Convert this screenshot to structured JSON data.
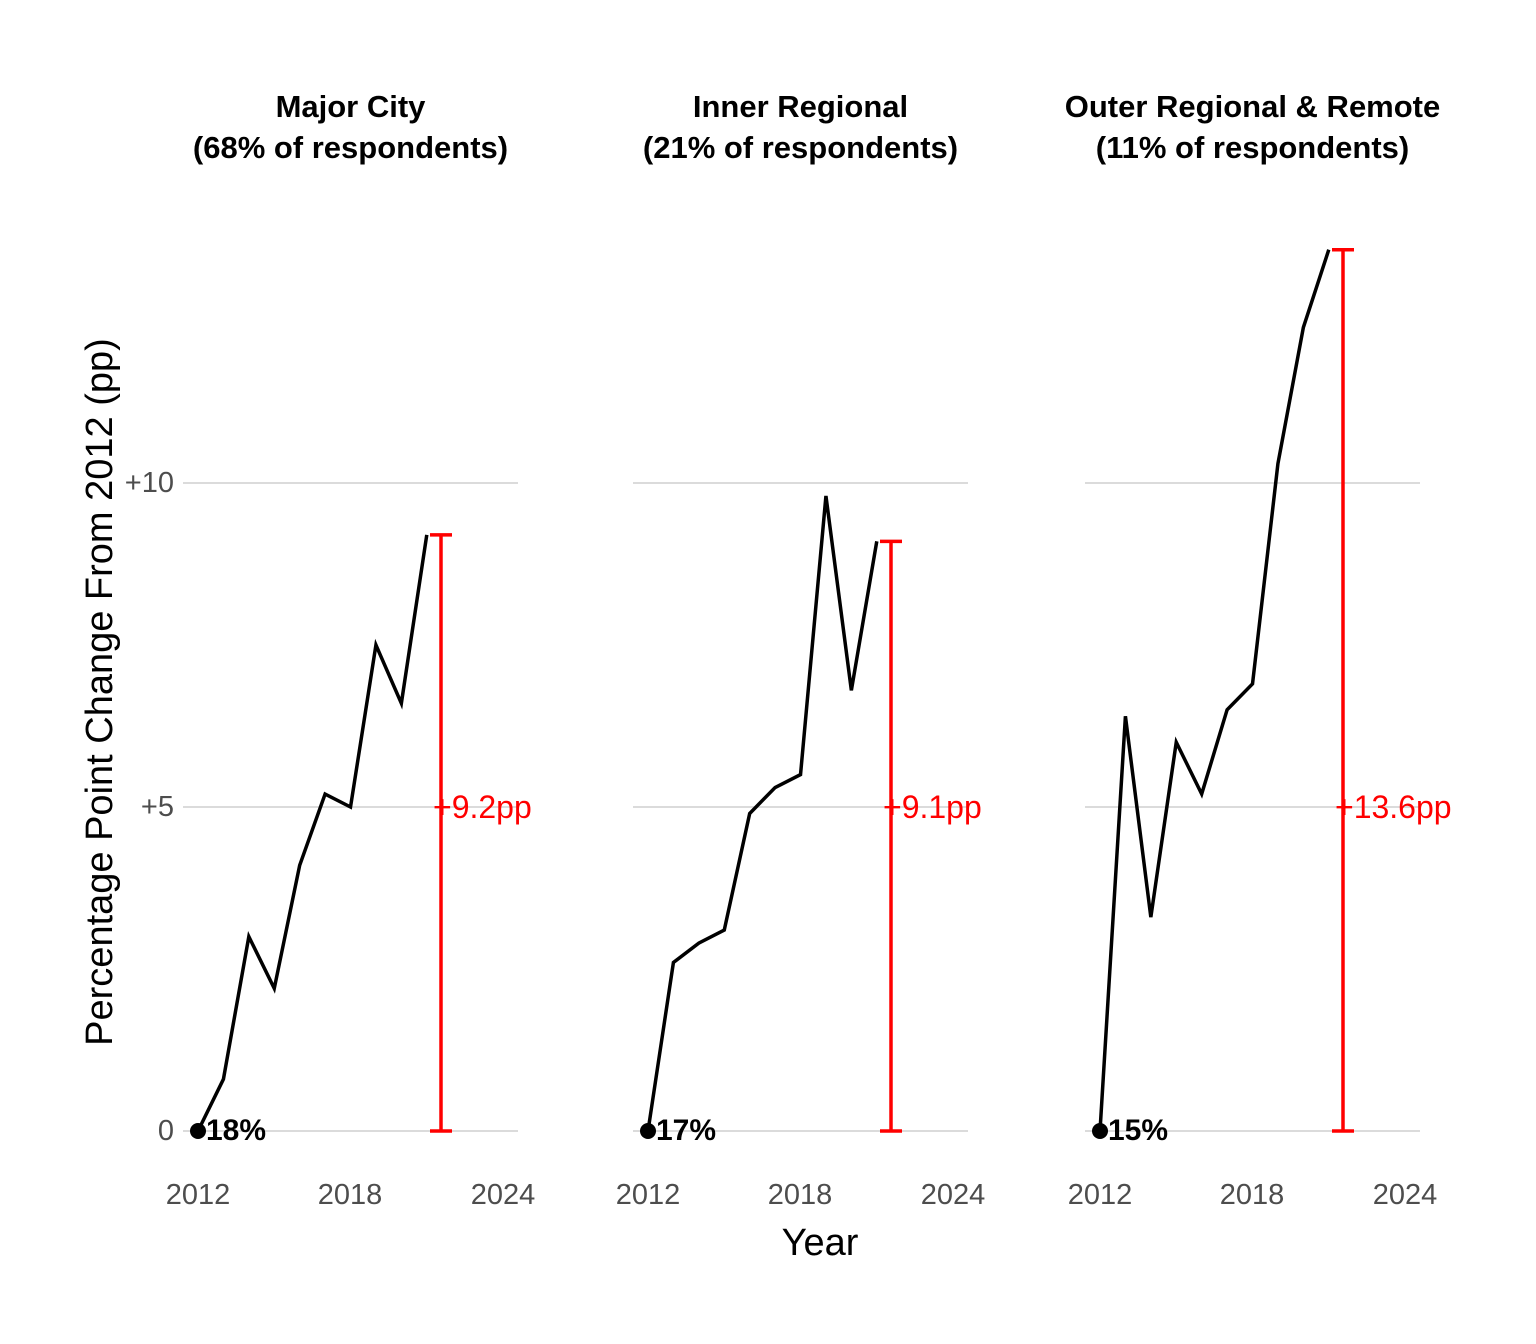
{
  "colors": {
    "line": "#000000",
    "annotation": "#ff0000",
    "gridline": "#dbdbdb",
    "tick_label": "#4d4d4d",
    "title": "#000000",
    "background": "#ffffff"
  },
  "y_axis": {
    "title": "Percentage Point Change From 2012 (pp)",
    "ticks": [
      "0",
      "+5",
      "+10"
    ],
    "tick_values": [
      0,
      5,
      10
    ]
  },
  "x_axis": {
    "title": "Year",
    "ticks": [
      "2012",
      "2018",
      "2024"
    ],
    "tick_values": [
      2012,
      2018,
      2024
    ]
  },
  "chart_data": [
    {
      "type": "line",
      "panel": "Major City",
      "title_line1": "Major City",
      "title_line2": "(68% of respondents)",
      "x": [
        2012,
        2013,
        2014,
        2015,
        2016,
        2017,
        2018,
        2019,
        2020,
        2021
      ],
      "values": [
        0,
        0.8,
        3.0,
        2.2,
        4.1,
        5.2,
        5.0,
        7.5,
        6.6,
        9.2
      ],
      "start_label": "18%",
      "change_label": "+9.2pp",
      "change_value": 9.2,
      "xlabel": "Year",
      "ylabel": "Percentage Point Change From 2012 (pp)",
      "xlim": [
        2011.4,
        2024.6
      ],
      "ylim": [
        -0.7,
        14.3
      ],
      "gridlines_y": [
        0,
        5,
        10
      ],
      "legend": "none",
      "line_color": "#000000",
      "annotation_color": "#ff0000"
    },
    {
      "type": "line",
      "panel": "Inner Regional",
      "title_line1": "Inner Regional",
      "title_line2": "(21% of respondents)",
      "x": [
        2012,
        2013,
        2014,
        2015,
        2016,
        2017,
        2018,
        2019,
        2020,
        2021
      ],
      "values": [
        0,
        2.6,
        2.9,
        3.1,
        4.9,
        5.3,
        5.5,
        9.8,
        6.8,
        9.1
      ],
      "start_label": "17%",
      "change_label": "+9.1pp",
      "change_value": 9.1,
      "xlabel": "Year",
      "ylabel": "Percentage Point Change From 2012 (pp)",
      "xlim": [
        2011.4,
        2024.6
      ],
      "ylim": [
        -0.7,
        14.3
      ],
      "gridlines_y": [
        0,
        5,
        10
      ],
      "legend": "none",
      "line_color": "#000000",
      "annotation_color": "#ff0000"
    },
    {
      "type": "line",
      "panel": "Outer Regional & Remote",
      "title_line1": "Outer Regional & Remote",
      "title_line2": "(11% of respondents)",
      "x": [
        2012,
        2013,
        2014,
        2015,
        2016,
        2017,
        2018,
        2019,
        2020,
        2021
      ],
      "values": [
        0,
        6.4,
        3.3,
        6.0,
        5.2,
        6.5,
        6.9,
        10.3,
        12.4,
        13.6
      ],
      "start_label": "15%",
      "change_label": "+13.6pp",
      "change_value": 13.6,
      "xlabel": "Year",
      "ylabel": "Percentage Point Change From 2012 (pp)",
      "xlim": [
        2011.4,
        2024.6
      ],
      "ylim": [
        -0.7,
        14.3
      ],
      "gridlines_y": [
        0,
        5,
        10
      ],
      "legend": "none",
      "line_color": "#000000",
      "annotation_color": "#ff0000"
    }
  ]
}
